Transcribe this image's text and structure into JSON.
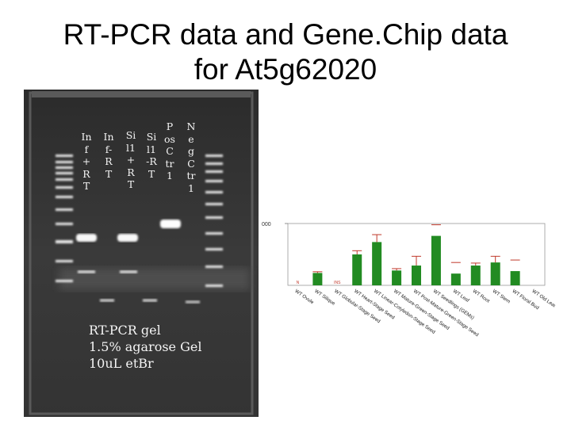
{
  "title": {
    "line1": "RT-PCR data and Gene.Chip data",
    "line2": "for At5g62020"
  },
  "gel": {
    "lanes": [
      {
        "label": "Inf+RT"
      },
      {
        "label": "Inf-RT"
      },
      {
        "label": "Sil1+RT"
      },
      {
        "label": "Sil1-RT"
      },
      {
        "label": "PosCtr1"
      },
      {
        "label": "NegCtr1"
      }
    ],
    "caption": {
      "line1": "RT-PCR gel",
      "line2": "1.5% agarose Gel",
      "line3": "10uL etBr"
    }
  },
  "chart_data": {
    "type": "bar",
    "y_tick_label": "000",
    "categories": [
      "WT Ovule",
      "WT Silique",
      "WT Globular-Stage Seed",
      "WT Heart-Stage Seed",
      "WT Linear-Cotyledon-Stage Seed",
      "WT Mature-Green-Stage Seed",
      "WT Post-Mature-Green-Stage Seed",
      "WT Seedlings (GEMs)",
      "WT Leaf",
      "WT Root",
      "WT Stem",
      "WT Floral Bud",
      "WT Old Leaf"
    ],
    "values": [
      0,
      20,
      0,
      50,
      70,
      24,
      32,
      80,
      19,
      32,
      37,
      23,
      0
    ],
    "errors": [
      0,
      2,
      0,
      6,
      12,
      3,
      15,
      0,
      0,
      4,
      10,
      0,
      0
    ],
    "markers": [
      "N",
      "",
      "INS",
      "",
      "",
      "",
      "",
      "",
      "",
      "",
      "",
      "",
      ""
    ],
    "bar_color": "#228b22",
    "error_color": "#c0392b",
    "ylim": [
      0,
      100
    ]
  }
}
